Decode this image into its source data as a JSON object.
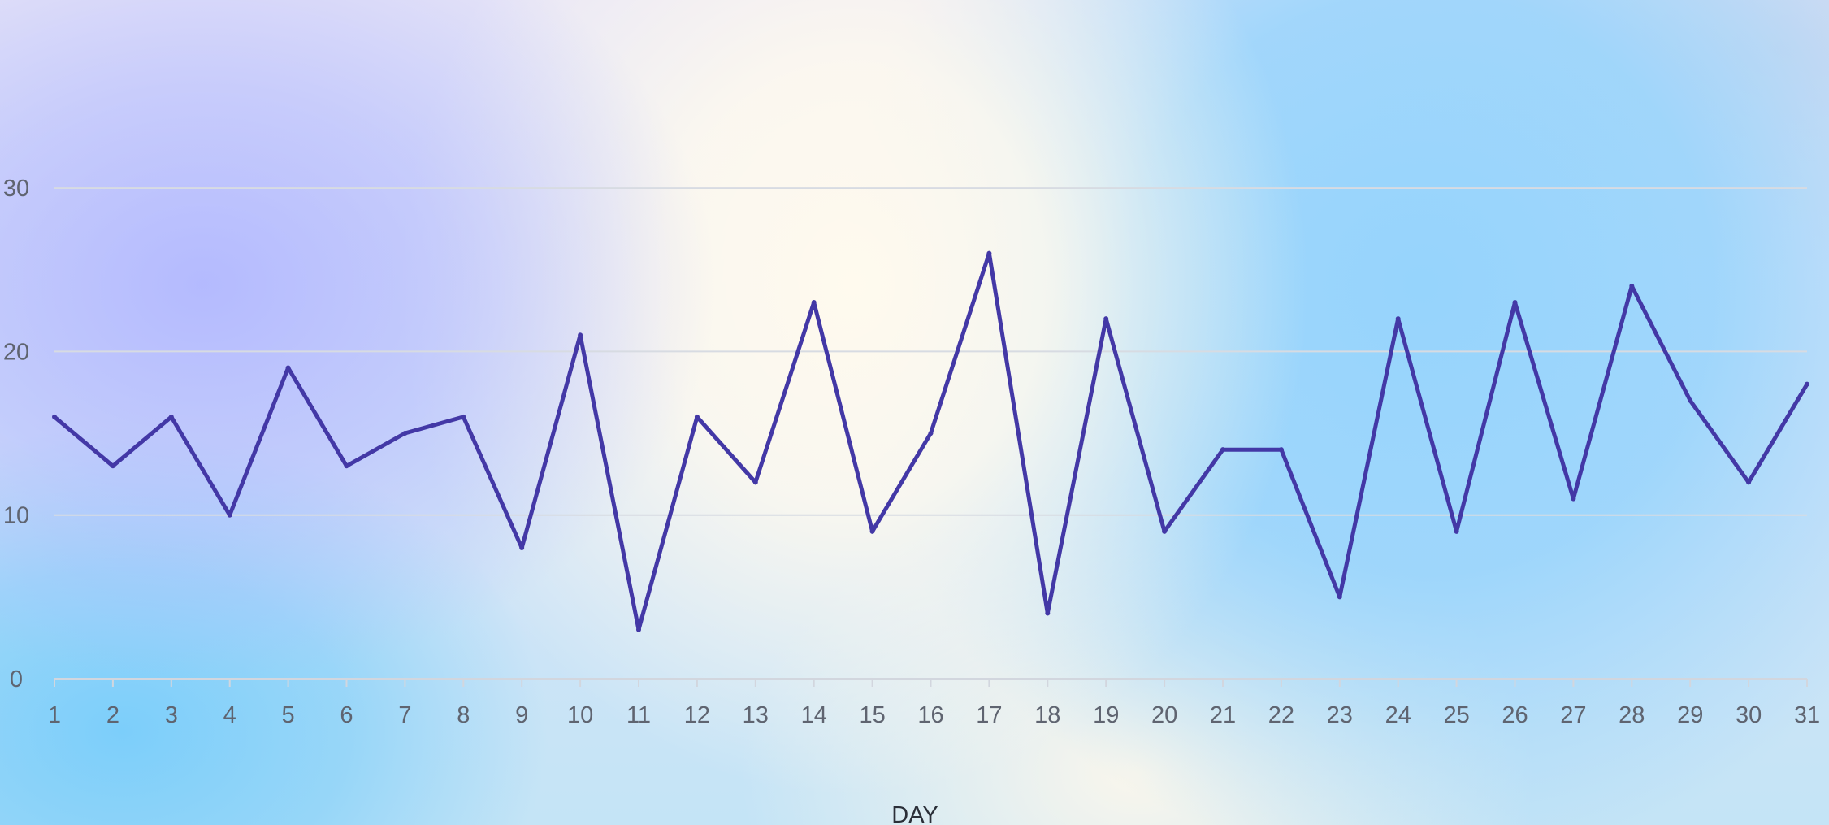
{
  "chart_data": {
    "type": "line",
    "title": "",
    "xlabel": "DAY",
    "ylabel": "",
    "x": [
      1,
      2,
      3,
      4,
      5,
      6,
      7,
      8,
      9,
      10,
      11,
      12,
      13,
      14,
      15,
      16,
      17,
      18,
      19,
      20,
      21,
      22,
      23,
      24,
      25,
      26,
      27,
      28,
      29,
      30,
      31
    ],
    "series": [
      {
        "values": [
          16,
          13,
          16,
          10,
          19,
          13,
          15,
          16,
          8,
          21,
          3,
          16,
          12,
          23,
          9,
          15,
          26,
          4,
          22,
          9,
          14,
          14,
          5,
          22,
          9,
          23,
          11,
          24,
          17,
          12,
          18
        ]
      }
    ],
    "ylim": [
      0,
      30
    ],
    "yticks": [
      0,
      10,
      20,
      30
    ],
    "grid": true,
    "legend": "none",
    "line_color": "#4338a6",
    "grid_color": "#d7dbe2",
    "axis_color": "#d2d6de"
  }
}
